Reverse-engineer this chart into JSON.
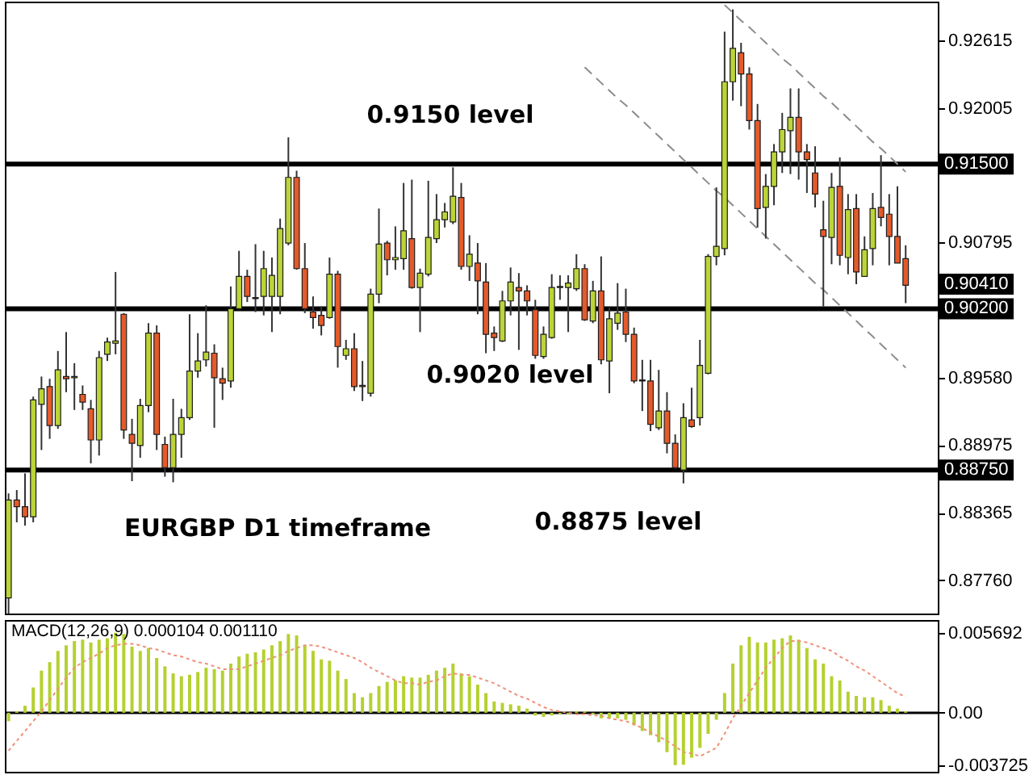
{
  "chart_data": [
    {
      "type": "candlestick",
      "categories": [
        null,
        null,
        null,
        null,
        null,
        null,
        null,
        null,
        null,
        null,
        null,
        null,
        null,
        null,
        null,
        null,
        null,
        null,
        null,
        null,
        null,
        null,
        null,
        null,
        null,
        null,
        null,
        null,
        null,
        null,
        null,
        null,
        null,
        null,
        null,
        null,
        null,
        null,
        null,
        null,
        null,
        null,
        null,
        null,
        null,
        null,
        null,
        null,
        null,
        null,
        null,
        null,
        null,
        null,
        null,
        null,
        null,
        null,
        null,
        null,
        null,
        null,
        null,
        null,
        null,
        null,
        null,
        null,
        null,
        null,
        null,
        null,
        null,
        null,
        null,
        null,
        null,
        null,
        null,
        null,
        null,
        null,
        null,
        null,
        null,
        null,
        null,
        null,
        null,
        null,
        null,
        null,
        null,
        null,
        null,
        null,
        null,
        null,
        null,
        null,
        null,
        null,
        null,
        null,
        null,
        null,
        null,
        null,
        null,
        null
      ],
      "ohlc": [
        [
          0.876,
          0.8854,
          0.8746,
          0.8848
        ],
        [
          0.8848,
          0.8857,
          0.8828,
          0.8842
        ],
        [
          0.8842,
          0.8872,
          0.8825,
          0.8833
        ],
        [
          0.8833,
          0.8941,
          0.8828,
          0.8938
        ],
        [
          0.8934,
          0.8959,
          0.8893,
          0.8948
        ],
        [
          0.895,
          0.8957,
          0.8903,
          0.8915
        ],
        [
          0.8915,
          0.8982,
          0.8912,
          0.8965
        ],
        [
          0.8959,
          0.8999,
          0.8945,
          0.8957
        ],
        [
          0.8958,
          0.8971,
          0.8929,
          0.8959
        ],
        [
          0.8943,
          0.8951,
          0.8929,
          0.8936
        ],
        [
          0.893,
          0.8938,
          0.8881,
          0.8902
        ],
        [
          0.8902,
          0.8982,
          0.8888,
          0.8976
        ],
        [
          0.8979,
          0.8994,
          0.8973,
          0.899
        ],
        [
          0.8989,
          0.9053,
          0.8979,
          0.8991
        ],
        [
          0.9015,
          0.9016,
          0.8903,
          0.8911
        ],
        [
          0.8907,
          0.8921,
          0.8865,
          0.8899
        ],
        [
          0.8897,
          0.8939,
          0.8886,
          0.8933
        ],
        [
          0.8933,
          0.9007,
          0.8927,
          0.8998
        ],
        [
          0.8998,
          0.9005,
          0.8893,
          0.8907
        ],
        [
          0.8898,
          0.8905,
          0.8869,
          0.8877
        ],
        [
          0.8877,
          0.8939,
          0.8864,
          0.8907
        ],
        [
          0.8907,
          0.893,
          0.8886,
          0.8922
        ],
        [
          0.8922,
          0.9015,
          0.892,
          0.8964
        ],
        [
          0.8964,
          0.8998,
          0.8958,
          0.8973
        ],
        [
          0.8974,
          0.9023,
          0.8968,
          0.8981
        ],
        [
          0.898,
          0.8988,
          0.8913,
          0.8958
        ],
        [
          0.8957,
          0.8967,
          0.8938,
          0.8953
        ],
        [
          0.8955,
          0.904,
          0.8949,
          0.902
        ],
        [
          0.902,
          0.9072,
          0.9019,
          0.9049
        ],
        [
          0.9049,
          0.9055,
          0.9026,
          0.9031
        ],
        [
          0.903,
          0.9078,
          0.9017,
          0.9029
        ],
        [
          0.9031,
          0.9072,
          0.9014,
          0.9056
        ],
        [
          0.9031,
          0.9066,
          0.8999,
          0.905
        ],
        [
          0.9031,
          0.9101,
          0.9015,
          0.9092
        ],
        [
          0.9079,
          0.9174,
          0.9077,
          0.9138
        ],
        [
          0.9138,
          0.9144,
          0.9055,
          0.9056
        ],
        [
          0.9056,
          0.9079,
          0.9016,
          0.902
        ],
        [
          0.9017,
          0.9031,
          0.9002,
          0.9012
        ],
        [
          0.9014,
          0.9022,
          0.8996,
          0.9005
        ],
        [
          0.9012,
          0.9066,
          0.9011,
          0.9051
        ],
        [
          0.9051,
          0.9054,
          0.8967,
          0.8986
        ],
        [
          0.8978,
          0.8992,
          0.8974,
          0.8984
        ],
        [
          0.8984,
          0.8998,
          0.8946,
          0.895
        ],
        [
          0.8951,
          0.8973,
          0.8937,
          0.895
        ],
        [
          0.8944,
          0.9038,
          0.8941,
          0.9033
        ],
        [
          0.9033,
          0.911,
          0.9025,
          0.9078
        ],
        [
          0.9079,
          0.9081,
          0.905,
          0.9064
        ],
        [
          0.9064,
          0.9094,
          0.9055,
          0.9066
        ],
        [
          0.9065,
          0.9133,
          0.9055,
          0.909
        ],
        [
          0.9083,
          0.9136,
          0.9038,
          0.9039
        ],
        [
          0.9039,
          0.9056,
          0.8999,
          0.9052
        ],
        [
          0.9051,
          0.9135,
          0.9049,
          0.9084
        ],
        [
          0.9083,
          0.9123,
          0.9079,
          0.91
        ],
        [
          0.91,
          0.9115,
          0.9093,
          0.9107
        ],
        [
          0.9098,
          0.9147,
          0.9096,
          0.9121
        ],
        [
          0.912,
          0.9133,
          0.9055,
          0.9058
        ],
        [
          0.9058,
          0.9086,
          0.9045,
          0.9069
        ],
        [
          0.9061,
          0.9079,
          0.9015,
          0.9045
        ],
        [
          0.9044,
          0.9061,
          0.898,
          0.8997
        ],
        [
          0.8998,
          0.9004,
          0.8982,
          0.8994
        ],
        [
          0.8991,
          0.9036,
          0.899,
          0.9027
        ],
        [
          0.9027,
          0.9057,
          0.9014,
          0.9044
        ],
        [
          0.9039,
          0.9052,
          0.8983,
          0.9036
        ],
        [
          0.9036,
          0.9041,
          0.9014,
          0.9027
        ],
        [
          0.9019,
          0.9028,
          0.8975,
          0.8978
        ],
        [
          0.8977,
          0.9004,
          0.8975,
          0.8997
        ],
        [
          0.8994,
          0.9051,
          0.8993,
          0.9039
        ],
        [
          0.904,
          0.905,
          0.9028,
          0.9039
        ],
        [
          0.9039,
          0.905,
          0.8999,
          0.9043
        ],
        [
          0.9038,
          0.9069,
          0.9036,
          0.9056
        ],
        [
          0.9056,
          0.906,
          0.9009,
          0.901
        ],
        [
          0.9009,
          0.9045,
          0.9007,
          0.9036
        ],
        [
          0.9036,
          0.9067,
          0.897,
          0.8974
        ],
        [
          0.8973,
          0.9021,
          0.8944,
          0.9011
        ],
        [
          0.9007,
          0.9043,
          0.9001,
          0.9016
        ],
        [
          0.9017,
          0.9038,
          0.899,
          0.8997
        ],
        [
          0.8997,
          0.9003,
          0.8953,
          0.8955
        ],
        [
          0.8955,
          0.8974,
          0.8928,
          0.8956
        ],
        [
          0.8955,
          0.8974,
          0.891,
          0.8916
        ],
        [
          0.8913,
          0.8965,
          0.8911,
          0.8928
        ],
        [
          0.8928,
          0.8945,
          0.889,
          0.8899
        ],
        [
          0.8899,
          0.8907,
          0.8876,
          0.8877
        ],
        [
          0.8875,
          0.8935,
          0.8863,
          0.8922
        ],
        [
          0.892,
          0.8949,
          0.8913,
          0.8914
        ],
        [
          0.8922,
          0.8992,
          0.8915,
          0.8969
        ],
        [
          0.8962,
          0.9069,
          0.8961,
          0.9067
        ],
        [
          0.9067,
          0.9129,
          0.9059,
          0.9076
        ],
        [
          0.9074,
          0.9269,
          0.9068,
          0.9224
        ],
        [
          0.9224,
          0.9289,
          0.9207,
          0.9254
        ],
        [
          0.925,
          0.9259,
          0.9202,
          0.9231
        ],
        [
          0.9231,
          0.9237,
          0.9181,
          0.9189
        ],
        [
          0.9189,
          0.9204,
          0.9093,
          0.911
        ],
        [
          0.9111,
          0.9141,
          0.9083,
          0.913
        ],
        [
          0.913,
          0.9168,
          0.9113,
          0.9161
        ],
        [
          0.9161,
          0.9196,
          0.9142,
          0.9181
        ],
        [
          0.918,
          0.9218,
          0.9141,
          0.9192
        ],
        [
          0.9192,
          0.9218,
          0.9136,
          0.9161
        ],
        [
          0.9161,
          0.9168,
          0.9124,
          0.9154
        ],
        [
          0.9142,
          0.9166,
          0.9111,
          0.9123
        ],
        [
          0.9091,
          0.9117,
          0.9022,
          0.9085
        ],
        [
          0.9084,
          0.9142,
          0.906,
          0.9129
        ],
        [
          0.913,
          0.9156,
          0.9059,
          0.9068
        ],
        [
          0.9066,
          0.9123,
          0.9051,
          0.9109
        ],
        [
          0.911,
          0.9123,
          0.9042,
          0.9053
        ],
        [
          0.9049,
          0.9085,
          0.9049,
          0.9073
        ],
        [
          0.9074,
          0.9124,
          0.9059,
          0.911
        ],
        [
          0.9111,
          0.9158,
          0.9094,
          0.9102
        ],
        [
          0.9105,
          0.9123,
          0.9059,
          0.9085
        ],
        [
          0.9085,
          0.913,
          0.9061,
          0.9061
        ],
        [
          0.9065,
          0.9077,
          0.9025,
          0.9041
        ]
      ],
      "colors": [
        "#bcd437",
        "#e45a2a",
        "#e45a2a",
        "#bcd437",
        "#bcd437",
        "#e45a2a",
        "#bcd437",
        "#e45a2a",
        "#bcd437",
        "#e45a2a",
        "#e45a2a",
        "#bcd437",
        "#bcd437",
        "#bcd437",
        "#e45a2a",
        "#e45a2a",
        "#bcd437",
        "#bcd437",
        "#e45a2a",
        "#e45a2a",
        "#bcd437",
        "#bcd437",
        "#bcd437",
        "#bcd437",
        "#bcd437",
        "#e45a2a",
        "#e45a2a",
        "#bcd437",
        "#bcd437",
        "#e45a2a",
        "#e45a2a",
        "#bcd437",
        "#bcd437",
        "#bcd437",
        "#bcd437",
        "#e45a2a",
        "#e45a2a",
        "#e45a2a",
        "#e45a2a",
        "#bcd437",
        "#e45a2a",
        "#bcd437",
        "#e45a2a",
        "#e45a2a",
        "#bcd437",
        "#bcd437",
        "#e45a2a",
        "#bcd437",
        "#bcd437",
        "#e45a2a",
        "#bcd437",
        "#bcd437",
        "#bcd437",
        "#bcd437",
        "#bcd437",
        "#e45a2a",
        "#bcd437",
        "#e45a2a",
        "#e45a2a",
        "#e45a2a",
        "#bcd437",
        "#bcd437",
        "#e45a2a",
        "#e45a2a",
        "#e45a2a",
        "#bcd437",
        "#bcd437",
        "#e45a2a",
        "#bcd437",
        "#bcd437",
        "#e45a2a",
        "#bcd437",
        "#e45a2a",
        "#bcd437",
        "#bcd437",
        "#e45a2a",
        "#e45a2a",
        "#bcd437",
        "#e45a2a",
        "#bcd437",
        "#e45a2a",
        "#e45a2a",
        "#bcd437",
        "#e45a2a",
        "#bcd437",
        "#bcd437",
        "#bcd437",
        "#bcd437",
        "#bcd437",
        "#e45a2a",
        "#e45a2a",
        "#e45a2a",
        "#bcd437",
        "#bcd437",
        "#bcd437",
        "#bcd437",
        "#e45a2a",
        "#e45a2a",
        "#e45a2a",
        "#e45a2a",
        "#bcd437",
        "#e45a2a",
        "#bcd437",
        "#e45a2a",
        "#bcd437",
        "#bcd437",
        "#e45a2a",
        "#e45a2a",
        "#e45a2a",
        "#e45a2a"
      ],
      "series": [
        {
          "type": "line",
          "color": "#8c8c8c",
          "line_style": "dashed",
          "values": [
            null,
            null,
            null,
            null,
            null,
            null,
            null,
            null,
            null,
            null,
            null,
            null,
            null,
            null,
            null,
            null,
            null,
            null,
            null,
            null,
            null,
            null,
            null,
            null,
            null,
            null,
            null,
            null,
            null,
            null,
            null,
            null,
            null,
            null,
            null,
            null,
            null,
            null,
            null,
            null,
            null,
            null,
            null,
            null,
            null,
            null,
            null,
            null,
            null,
            null,
            null,
            null,
            null,
            null,
            null,
            null,
            null,
            null,
            null,
            null,
            null,
            null,
            null,
            null,
            null,
            null,
            null,
            null,
            null,
            null,
            null,
            null,
            null,
            null,
            null,
            null,
            null,
            null,
            null,
            null,
            null,
            null,
            null,
            null,
            null,
            null,
            null,
            0.9293,
            0.9286,
            0.9279,
            0.9273,
            0.9266,
            0.9259,
            0.9252,
            0.9245,
            0.9239,
            0.9232,
            0.9225,
            0.9218,
            0.9211,
            0.9205,
            0.9198,
            0.9191,
            0.9184,
            0.9177,
            0.917,
            0.9164,
            0.9157,
            0.915,
            0.9143
          ]
        },
        {
          "type": "line",
          "color": "#8c8c8c",
          "line_style": "dashed",
          "values": [
            null,
            null,
            null,
            null,
            null,
            null,
            null,
            null,
            null,
            null,
            null,
            null,
            null,
            null,
            null,
            null,
            null,
            null,
            null,
            null,
            null,
            null,
            null,
            null,
            null,
            null,
            null,
            null,
            null,
            null,
            null,
            null,
            null,
            null,
            null,
            null,
            null,
            null,
            null,
            null,
            null,
            null,
            null,
            null,
            null,
            null,
            null,
            null,
            null,
            null,
            null,
            null,
            null,
            null,
            null,
            null,
            null,
            null,
            null,
            null,
            null,
            null,
            null,
            null,
            null,
            null,
            null,
            null,
            null,
            null,
            0.9237,
            0.923,
            0.9223,
            0.9216,
            0.9209,
            0.9203,
            0.9196,
            0.9189,
            0.9182,
            0.9175,
            0.9168,
            0.9161,
            0.9154,
            0.9147,
            0.914,
            0.9133,
            0.9126,
            0.912,
            0.9113,
            0.9106,
            0.9099,
            0.9092,
            0.9085,
            0.9078,
            0.9071,
            0.9064,
            0.9057,
            0.905,
            0.9043,
            0.9037,
            0.903,
            0.9023,
            0.9016,
            0.9009,
            0.9002,
            0.8995,
            0.8988,
            0.8981,
            0.8974,
            0.8967
          ]
        }
      ],
      "ylim": [
        0.8746,
        0.9296
      ],
      "yticks": [
        0.92615,
        0.92005,
        0.90795,
        {
          "value": 0.8958,
          "label": "0.89580"
        },
        0.88975,
        0.88365,
        {
          "value": 0.8776,
          "label": "0.87760"
        }
      ],
      "ref_lines": [
        {
          "axis": "y",
          "value": 0.915,
          "label": "0.91500",
          "color": "#000000"
        },
        {
          "axis": "y",
          "value": 0.902,
          "label": "0.90200",
          "color": "#000000"
        },
        {
          "axis": "y",
          "value": 0.8875,
          "label": "0.88750",
          "color": "#000000"
        }
      ],
      "annotations": [
        "0.9150 level",
        "0.9020 level",
        "EURGBP D1 timeframe",
        "0.8875 level",
        "0.90410"
      ],
      "tick_labels": "y"
    },
    {
      "type": "bar",
      "title": "MACD(12,26,9) 0.000104 0.001110",
      "categories": [
        null,
        null,
        null,
        null,
        null,
        null,
        null,
        null,
        null,
        null,
        null,
        null,
        null,
        null,
        null,
        null,
        null,
        null,
        null,
        null,
        null,
        null,
        null,
        null,
        null,
        null,
        null,
        null,
        null,
        null,
        null,
        null,
        null,
        null,
        null,
        null,
        null,
        null,
        null,
        null,
        null,
        null,
        null,
        null,
        null,
        null,
        null,
        null,
        null,
        null,
        null,
        null,
        null,
        null,
        null,
        null,
        null,
        null,
        null,
        null,
        null,
        null,
        null,
        null,
        null,
        null,
        null,
        null,
        null,
        null,
        null,
        null,
        null,
        null,
        null,
        null,
        null,
        null,
        null,
        null,
        null,
        null,
        null,
        null,
        null,
        null,
        null,
        null,
        null,
        null,
        null,
        null,
        null,
        null,
        null,
        null,
        null,
        null,
        null,
        null,
        null,
        null,
        null,
        null,
        null,
        null,
        null,
        null,
        null,
        null
      ],
      "series": [
        {
          "color": "#b4d130",
          "values": [
            -0.0006,
            0.0001,
            0.0005,
            0.0018,
            0.003,
            0.0036,
            0.0044,
            0.0048,
            0.0051,
            0.0052,
            0.005,
            0.0052,
            0.0053,
            0.005692,
            0.0056,
            0.0047,
            0.0044,
            0.0046,
            0.0039,
            0.0033,
            0.0028,
            0.0026,
            0.0027,
            0.0029,
            0.0032,
            0.0031,
            0.003,
            0.0035,
            0.004,
            0.0042,
            0.0043,
            0.0045,
            0.0048,
            0.0051,
            0.0056,
            0.0055,
            0.0048,
            0.0044,
            0.0038,
            0.0037,
            0.003,
            0.0024,
            0.0014,
            0.0011,
            0.0014,
            0.0019,
            0.0022,
            0.0023,
            0.0026,
            0.0025,
            0.0025,
            0.0027,
            0.003,
            0.0032,
            0.0035,
            0.0028,
            0.0026,
            0.002,
            0.0014,
            0.0008,
            0.0007,
            0.0006,
            0.0005,
            0.0003,
            -0.0002,
            -0.0003,
            -0.0002,
            -0.0001,
            -0.0001,
            0.0001,
            0.0001,
            -0.0001,
            -0.0004,
            -0.0004,
            -0.0004,
            -0.0005,
            -0.0009,
            -0.0013,
            -0.0016,
            -0.0021,
            -0.0028,
            -0.003725,
            -0.0037,
            -0.0032,
            -0.0025,
            -0.0015,
            -0.0005,
            0.0014,
            0.0035,
            0.0048,
            0.0054,
            0.005,
            0.005,
            0.0052,
            0.0053,
            0.0055,
            0.0052,
            0.0046,
            0.0038,
            0.0035,
            0.0026,
            0.0023,
            0.0015,
            0.0012,
            0.0011,
            0.0011,
            0.0009,
            0.0005,
            0.0003,
            0.000104
          ]
        },
        {
          "type": "line",
          "color": "#f0907a",
          "line_style": "dotted",
          "values": [
            -0.0027,
            -0.002,
            -0.0013,
            -0.0006,
            0.0001,
            0.0009,
            0.0017,
            0.0025,
            0.0032,
            0.0036,
            0.0039,
            0.0042,
            0.0046,
            0.0048,
            0.0049,
            0.0049,
            0.0048,
            0.0046,
            0.0045,
            0.0043,
            0.0041,
            0.004,
            0.0038,
            0.0036,
            0.0035,
            0.0033,
            0.0031,
            0.0031,
            0.0031,
            0.0033,
            0.0035,
            0.0037,
            0.0039,
            0.0041,
            0.0044,
            0.0046,
            0.0048,
            0.0048,
            0.0047,
            0.0045,
            0.0043,
            0.0041,
            0.0039,
            0.0036,
            0.0032,
            0.0029,
            0.0026,
            0.0023,
            0.0021,
            0.0021,
            0.002,
            0.0022,
            0.0023,
            0.0026,
            0.0028,
            0.0027,
            0.0027,
            0.0025,
            0.0023,
            0.0021,
            0.0018,
            0.0015,
            0.0012,
            0.001,
            0.0007,
            0.0004,
            0.0002,
            0.0001,
            0.0,
            -0.0001,
            -0.0001,
            -0.0002,
            -0.0002,
            -0.0004,
            -0.0005,
            -0.0006,
            -0.0008,
            -0.0011,
            -0.0014,
            -0.0017,
            -0.002,
            -0.0024,
            -0.0028,
            -0.0029,
            -0.0031,
            -0.0028,
            -0.0025,
            -0.0015,
            -0.0004,
            0.0005,
            0.0014,
            0.0023,
            0.0032,
            0.0039,
            0.0046,
            0.0051,
            0.0051,
            0.005,
            0.0048,
            0.0046,
            0.0044,
            0.004,
            0.0037,
            0.0033,
            0.003,
            0.0026,
            0.0022,
            0.0018,
            0.0014,
            0.00111
          ]
        }
      ],
      "ylim": [
        -0.0042,
        0.0066
      ],
      "yticks": [
        0.005692,
        {
          "value": 0,
          "label": "0.00"
        },
        -0.003725
      ],
      "ref_lines": [
        {
          "axis": "y",
          "value": 0,
          "color": "#000000"
        }
      ],
      "tick_labels": "y"
    }
  ]
}
